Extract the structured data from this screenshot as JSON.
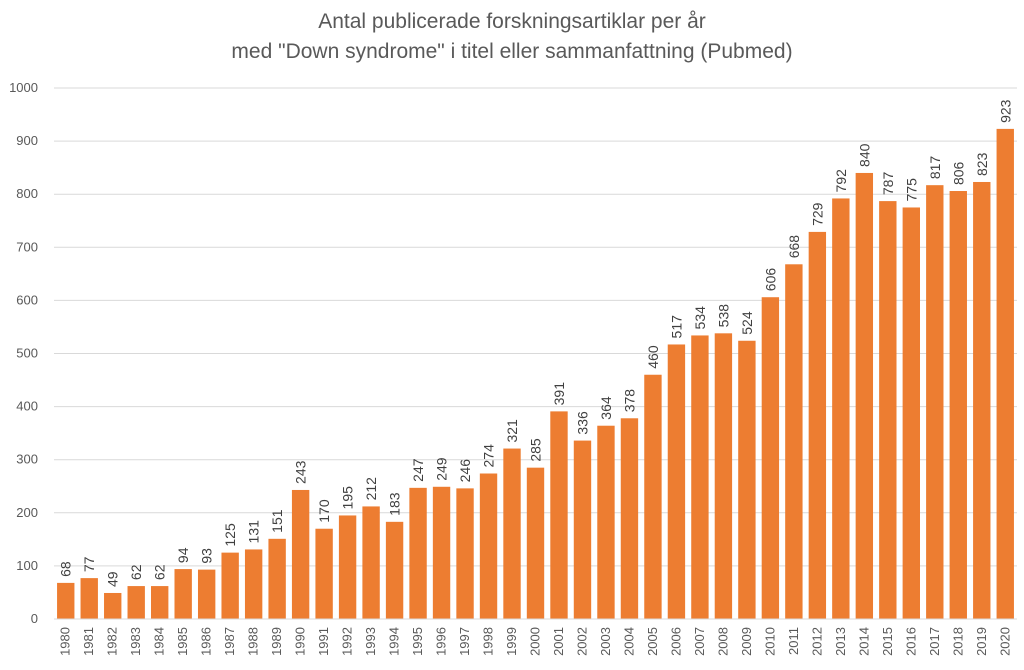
{
  "chart_data": {
    "type": "bar",
    "title": "Antal publicerade forskningsartiklar per år",
    "subtitle": "med \"Down syndrome\" i titel eller sammanfattning (Pubmed)",
    "xlabel": "",
    "ylabel": "",
    "ylim": [
      0,
      1000
    ],
    "yticks": [
      0,
      100,
      200,
      300,
      400,
      500,
      600,
      700,
      800,
      900,
      1000
    ],
    "grid": true,
    "legend": "none",
    "bar_color": "#ED7D31",
    "categories": [
      "1980",
      "1981",
      "1982",
      "1983",
      "1984",
      "1985",
      "1986",
      "1987",
      "1988",
      "1989",
      "1990",
      "1991",
      "1992",
      "1993",
      "1994",
      "1995",
      "1996",
      "1997",
      "1998",
      "1999",
      "2000",
      "2001",
      "2002",
      "2003",
      "2004",
      "2005",
      "2006",
      "2007",
      "2008",
      "2009",
      "2010",
      "2011",
      "2012",
      "2013",
      "2014",
      "2015",
      "2016",
      "2017",
      "2018",
      "2019",
      "2020"
    ],
    "values": [
      68,
      77,
      49,
      62,
      62,
      94,
      93,
      125,
      131,
      151,
      243,
      170,
      195,
      212,
      183,
      247,
      249,
      246,
      274,
      321,
      285,
      391,
      336,
      364,
      378,
      460,
      517,
      534,
      538,
      524,
      606,
      668,
      729,
      792,
      840,
      787,
      775,
      817,
      806,
      823,
      923
    ]
  }
}
